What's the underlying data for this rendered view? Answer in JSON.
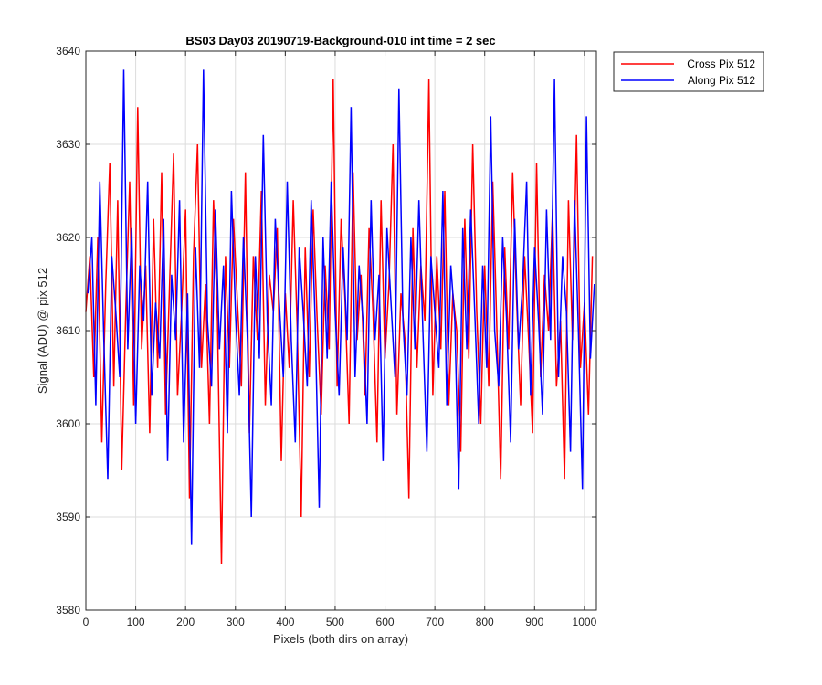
{
  "chart_data": {
    "type": "line",
    "title": "BS03 Day03 20190719-Background-010 int time = 2 sec",
    "xlabel": "Pixels (both dirs on array)",
    "ylabel": "Signal (ADU) @ pix 512",
    "xlim": [
      0,
      1024
    ],
    "ylim": [
      3580,
      3640
    ],
    "xticks": [
      0,
      100,
      200,
      300,
      400,
      500,
      600,
      700,
      800,
      900,
      1000
    ],
    "yticks": [
      3580,
      3590,
      3600,
      3610,
      3620,
      3630,
      3640
    ],
    "grid": true,
    "legend_position": "outside-top-right",
    "series": [
      {
        "name": "Cross Pix 512",
        "color": "#ff0000",
        "sample_step": 8,
        "x0": 0,
        "values": [
          3612,
          3618,
          3605,
          3620,
          3598,
          3615,
          3628,
          3604,
          3624,
          3595,
          3612,
          3626,
          3602,
          3634,
          3608,
          3617,
          3599,
          3622,
          3606,
          3627,
          3601,
          3615,
          3629,
          3603,
          3612,
          3623,
          3592,
          3618,
          3630,
          3606,
          3615,
          3600,
          3624,
          3611,
          3585,
          3618,
          3606,
          3622,
          3613,
          3604,
          3627,
          3599,
          3618,
          3609,
          3625,
          3602,
          3616,
          3612,
          3621,
          3596,
          3614,
          3606,
          3624,
          3610,
          3590,
          3619,
          3605,
          3623,
          3611,
          3601,
          3617,
          3608,
          3637,
          3604,
          3622,
          3613,
          3600,
          3627,
          3609,
          3616,
          3603,
          3621,
          3612,
          3598,
          3624,
          3607,
          3615,
          3630,
          3601,
          3614,
          3609,
          3592,
          3621,
          3606,
          3617,
          3611,
          3637,
          3603,
          3618,
          3608,
          3625,
          3602,
          3614,
          3610,
          3597,
          3622,
          3607,
          3630,
          3612,
          3600,
          3617,
          3604,
          3626,
          3611,
          3594,
          3619,
          3608,
          3627,
          3613,
          3602,
          3618,
          3609,
          3599,
          3628,
          3605,
          3616,
          3610,
          3623,
          3604,
          3611,
          3594,
          3624,
          3609,
          3631,
          3606,
          3613,
          3601,
          3618
        ]
      },
      {
        "name": "Along Pix 512",
        "color": "#0000ff",
        "sample_step": 8,
        "x0": 4,
        "values": [
          3614,
          3620,
          3602,
          3626,
          3609,
          3594,
          3618,
          3612,
          3605,
          3638,
          3608,
          3621,
          3600,
          3617,
          3611,
          3626,
          3603,
          3613,
          3607,
          3622,
          3596,
          3616,
          3609,
          3624,
          3598,
          3614,
          3587,
          3619,
          3606,
          3638,
          3611,
          3604,
          3623,
          3608,
          3617,
          3599,
          3625,
          3612,
          3603,
          3620,
          3609,
          3590,
          3618,
          3607,
          3631,
          3611,
          3602,
          3622,
          3613,
          3605,
          3626,
          3609,
          3598,
          3619,
          3612,
          3604,
          3624,
          3611,
          3591,
          3620,
          3607,
          3626,
          3612,
          3603,
          3619,
          3609,
          3634,
          3605,
          3617,
          3611,
          3600,
          3624,
          3609,
          3616,
          3596,
          3621,
          3613,
          3605,
          3636,
          3611,
          3603,
          3620,
          3608,
          3624,
          3610,
          3597,
          3618,
          3612,
          3606,
          3625,
          3602,
          3617,
          3611,
          3593,
          3621,
          3608,
          3623,
          3612,
          3600,
          3617,
          3606,
          3633,
          3610,
          3604,
          3620,
          3611,
          3598,
          3622,
          3608,
          3615,
          3626,
          3603,
          3619,
          3611,
          3601,
          3623,
          3609,
          3637,
          3605,
          3618,
          3612,
          3597,
          3624,
          3610,
          3593,
          3633,
          3607,
          3615
        ]
      }
    ]
  }
}
